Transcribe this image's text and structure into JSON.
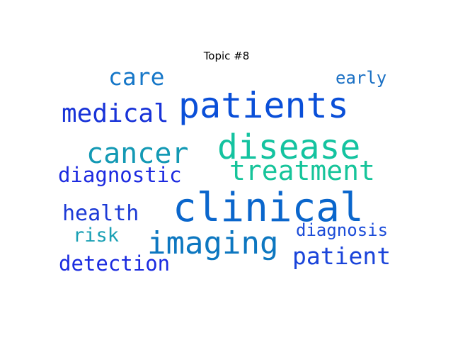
{
  "chart_data": {
    "type": "wordcloud",
    "title": "Topic #8",
    "words": [
      {
        "text": "patients",
        "color": "#0a4fd8"
      },
      {
        "text": "clinical",
        "color": "#0a66cc"
      },
      {
        "text": "disease",
        "color": "#14c3a0"
      },
      {
        "text": "imaging",
        "color": "#0d77c0"
      },
      {
        "text": "treatment",
        "color": "#16c49a"
      },
      {
        "text": "cancer",
        "color": "#1399b4"
      },
      {
        "text": "medical",
        "color": "#1833d8"
      },
      {
        "text": "care",
        "color": "#1677c8"
      },
      {
        "text": "diagnostic",
        "color": "#1c2ae0"
      },
      {
        "text": "health",
        "color": "#1c3ad6"
      },
      {
        "text": "patient",
        "color": "#1a44da"
      },
      {
        "text": "detection",
        "color": "#1a2be0"
      },
      {
        "text": "diagnosis",
        "color": "#1a4bd8"
      },
      {
        "text": "risk",
        "color": "#1aa0b4"
      },
      {
        "text": "early",
        "color": "#1a70c4"
      }
    ]
  }
}
